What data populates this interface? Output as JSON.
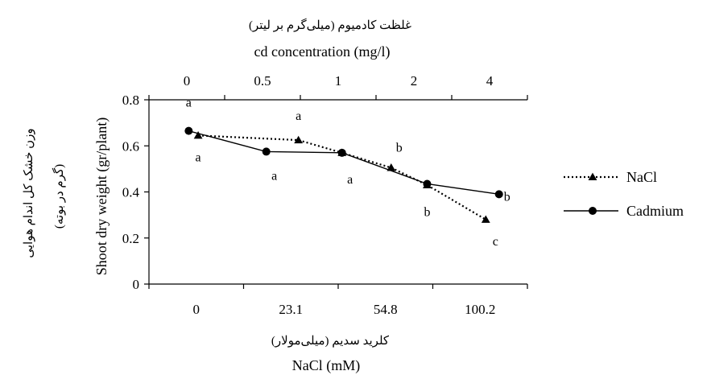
{
  "chart_data": {
    "type": "line",
    "x_bottom": {
      "label": "NaCl (mM)",
      "label_fa": "کلرید سدیم (میلی‌مولار)",
      "categories": [
        "0",
        "23.1",
        "54.8",
        "100.2"
      ]
    },
    "x_top": {
      "label": "cd concentration (mg/l)",
      "label_fa": "غلظت کادمیوم (میلی‌گرم بر لیتر)",
      "categories": [
        "0",
        "0.5",
        "1",
        "2",
        "4"
      ]
    },
    "y": {
      "label": "Shoot dry weight (gr/plant)",
      "label_fa_1": "وزن خشک کل اندام هوایی",
      "label_fa_2": "(گرم در بوته)",
      "ylim": [
        0,
        0.8
      ],
      "ticks": [
        "0",
        "0.2",
        "0.4",
        "0.6",
        "0.8"
      ]
    },
    "legend_position": "right",
    "series": [
      {
        "name": "NaCl",
        "style": "dotted",
        "marker": "triangle",
        "color": "#000000",
        "values": [
          0.645,
          0.625,
          0.57,
          0.505,
          0.43,
          0.28
        ],
        "letters": [
          "a",
          "a",
          "",
          "b",
          "",
          "c"
        ]
      },
      {
        "name": "Cadmium",
        "style": "solid",
        "marker": "circle",
        "color": "#000000",
        "values": [
          0.665,
          0.575,
          0.57,
          0.435,
          0.39
        ],
        "letters": [
          "a",
          "a",
          "a",
          "b",
          "b"
        ]
      }
    ]
  }
}
